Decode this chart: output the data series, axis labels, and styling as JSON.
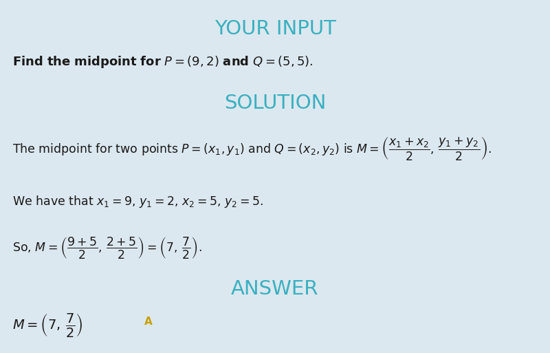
{
  "bg_color": "#dce8ef",
  "title_color": "#3ab0c0",
  "body_color": "#1a1a1a",
  "answer_highlight_color": "#c8a000",
  "title_your_input": "YOUR INPUT",
  "title_solution": "SOLUTION",
  "title_answer": "ANSWER",
  "answer_marker": "A",
  "figsize": [
    8.0,
    5.13
  ],
  "dpi": 100
}
